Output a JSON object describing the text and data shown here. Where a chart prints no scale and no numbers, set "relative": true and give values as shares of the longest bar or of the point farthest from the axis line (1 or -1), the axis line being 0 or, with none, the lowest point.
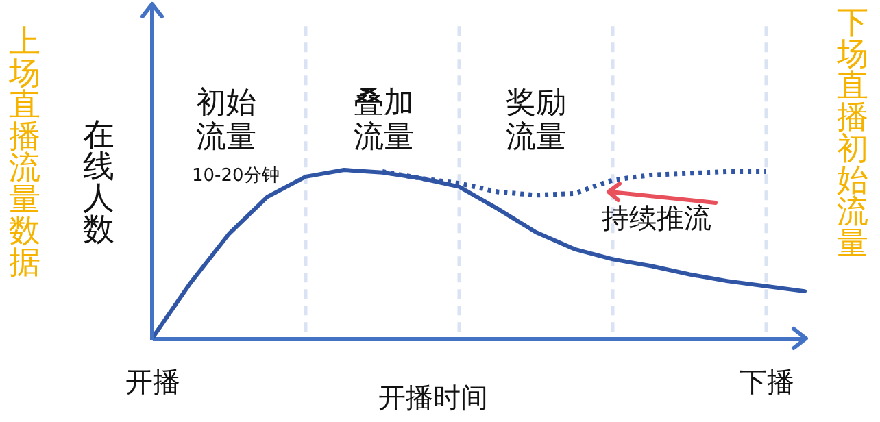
{
  "chart_data": {
    "type": "line",
    "relative": true,
    "xlabel": "开播时间",
    "ylabel": "在线人数",
    "marker": "none",
    "grid": "x",
    "line_style": "solid",
    "categories": [
      "开播",
      null,
      null,
      null,
      null,
      null,
      null,
      null,
      null,
      null,
      null,
      null,
      null,
      null,
      null,
      null,
      "下播",
      null
    ],
    "annotations": [
      "初始流量",
      "10-20分钟",
      "叠加流量",
      "奖励流量",
      "持续推流",
      "上场直播流量数据",
      "下场直播初始流量"
    ],
    "series": [
      {
        "color": "#2f55a4",
        "values": [
          0,
          0.33,
          0.62,
          0.84,
          0.96,
          1,
          0.985,
          0.95,
          0.9,
          0.77,
          0.63,
          0.53,
          0.47,
          0.43,
          0.38,
          0.34,
          0.31,
          0.28
        ]
      },
      {
        "color": "#2f55a4",
        "line_style": "dotted",
        "values": [
          null,
          null,
          null,
          null,
          null,
          null,
          0.99,
          0.95,
          0.92,
          0.87,
          0.85,
          0.86,
          0.94,
          0.97,
          0.98,
          0.99,
          0.99,
          null
        ]
      }
    ]
  }
}
